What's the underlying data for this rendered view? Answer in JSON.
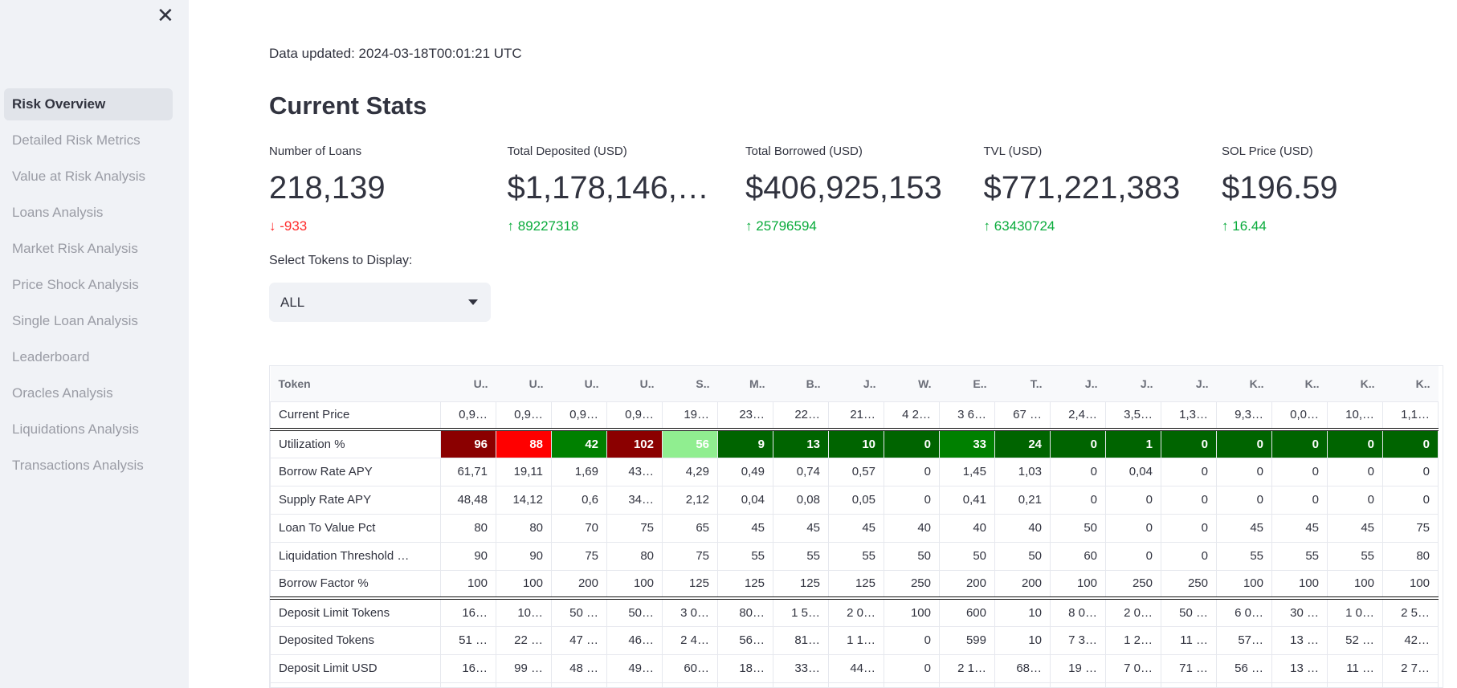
{
  "sidebar": {
    "close_icon": "x-icon",
    "items": [
      "Risk Overview",
      "Detailed Risk Metrics",
      "Value at Risk Analysis",
      "Loans Analysis",
      "Market Risk Analysis",
      "Price Shock Analysis",
      "Single Loan Analysis",
      "Leaderboard",
      "Oracles Analysis",
      "Liquidations Analysis",
      "Transactions Analysis"
    ],
    "active": 0
  },
  "updated": "Data updated: 2024-03-18T00:01:21 UTC",
  "title": "Current Stats",
  "metrics": [
    {
      "label": "Number of Loans",
      "value": "218,139",
      "delta": "-933",
      "dir": "down"
    },
    {
      "label": "Total Deposited (USD)",
      "value": "$1,178,146,…",
      "delta": "89227318",
      "dir": "up"
    },
    {
      "label": "Total Borrowed (USD)",
      "value": "$406,925,153",
      "delta": "25796594",
      "dir": "up"
    },
    {
      "label": "TVL (USD)",
      "value": "$771,221,383",
      "delta": "63430724",
      "dir": "up"
    },
    {
      "label": "SOL Price (USD)",
      "value": "$196.59",
      "delta": "16.44",
      "dir": "up"
    }
  ],
  "select": {
    "label": "Select Tokens to Display:",
    "value": "ALL"
  },
  "table": {
    "header": [
      "Token",
      "U..",
      "U..",
      "U..",
      "U..",
      "S..",
      "M..",
      "B..",
      "J..",
      "W.",
      "E..",
      "T..",
      "J..",
      "J..",
      "J..",
      "K..",
      "K..",
      "K..",
      "K.."
    ],
    "rows": [
      [
        "Current Price",
        "0,9…",
        "0,9…",
        "0,9…",
        "0,9…",
        "19…",
        "23…",
        "22…",
        "21…",
        "4 2…",
        "3 6…",
        "67 …",
        "2,4…",
        "3,5…",
        "1,3…",
        "9,3…",
        "0,0…",
        "10,…",
        "1,1…"
      ],
      [
        "Utilization %",
        "96",
        "88",
        "42",
        "102",
        "56",
        "9",
        "13",
        "10",
        "0",
        "33",
        "24",
        "0",
        "1",
        "0",
        "0",
        "0",
        "0",
        "0"
      ],
      [
        "Borrow Rate APY",
        "61,71",
        "19,11",
        "1,69",
        "43…",
        "4,29",
        "0,49",
        "0,74",
        "0,57",
        "0",
        "1,45",
        "1,03",
        "0",
        "0,04",
        "0",
        "0",
        "0",
        "0",
        "0"
      ],
      [
        "Supply Rate APY",
        "48,48",
        "14,12",
        "0,6",
        "34…",
        "2,12",
        "0,04",
        "0,08",
        "0,05",
        "0",
        "0,41",
        "0,21",
        "0",
        "0",
        "0",
        "0",
        "0",
        "0",
        "0"
      ],
      [
        "Loan To Value Pct",
        "80",
        "80",
        "70",
        "75",
        "65",
        "45",
        "45",
        "45",
        "40",
        "40",
        "40",
        "50",
        "0",
        "0",
        "45",
        "45",
        "45",
        "75"
      ],
      [
        "Liquidation Threshold …",
        "90",
        "90",
        "75",
        "80",
        "75",
        "55",
        "55",
        "55",
        "50",
        "50",
        "50",
        "60",
        "0",
        "0",
        "55",
        "55",
        "55",
        "80"
      ],
      [
        "Borrow Factor %",
        "100",
        "100",
        "200",
        "100",
        "125",
        "125",
        "125",
        "125",
        "250",
        "200",
        "200",
        "100",
        "250",
        "250",
        "100",
        "100",
        "100",
        "100"
      ],
      [
        "Deposit Limit Tokens",
        "16…",
        "10…",
        "50 …",
        "50…",
        "3 0…",
        "80…",
        "1 5…",
        "2 0…",
        "100",
        "600",
        "10",
        "8 0…",
        "2 0…",
        "50 …",
        "6 0…",
        "30 …",
        "1 0…",
        "2 5…"
      ],
      [
        "Deposited Tokens",
        "51 …",
        "22 …",
        "47 …",
        "46…",
        "2 4…",
        "56…",
        "81…",
        "1 1…",
        "0",
        "599",
        "10",
        "7 3…",
        "1 2…",
        "11 …",
        "57…",
        "13 …",
        "52 …",
        "42…"
      ],
      [
        "Deposit Limit USD",
        "16…",
        "99 …",
        "48 …",
        "49…",
        "60…",
        "18…",
        "33…",
        "44…",
        "0",
        "2 1…",
        "68…",
        "19 …",
        "7 0…",
        "71 …",
        "56 …",
        "13 …",
        "11 …",
        "2 7…"
      ],
      [
        "",
        "",
        "",
        "",
        "",
        "",
        "",
        "",
        "",
        "",
        "",
        "",
        "",
        "",
        "",
        "",
        "",
        "",
        ""
      ]
    ],
    "utilization_colors": [
      "#8b0000",
      "#ff0000",
      "#008000",
      "#8b0000",
      "#90ee90",
      "#006400",
      "#006400",
      "#006400",
      "#006400",
      "#008000",
      "#006400",
      "#006400",
      "#006400",
      "#006400",
      "#006400",
      "#006400",
      "#006400",
      "#006400"
    ]
  }
}
